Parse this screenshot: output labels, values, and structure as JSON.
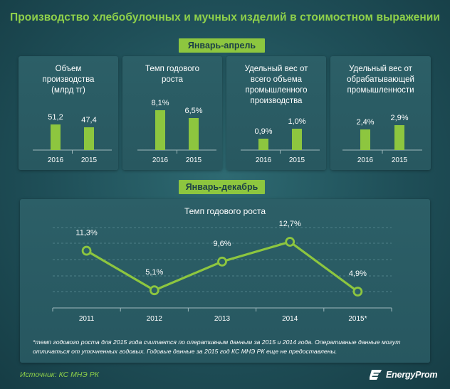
{
  "title": "Производство хлебобулочных и мучных изделий в стоимостном выражении",
  "section_top": "Январь-апрель",
  "section_bottom": "Январь-декабрь",
  "colors": {
    "accent": "#8dc63f",
    "background": "#1f4f58",
    "panel": "#2c5f67"
  },
  "chart_data": [
    {
      "type": "bar",
      "title": "Объем\nпроизводства\n(млрд тг)",
      "categories": [
        "2016",
        "2015"
      ],
      "values": [
        51.2,
        47.4
      ],
      "labels": [
        "51,2",
        "47,4"
      ]
    },
    {
      "type": "bar",
      "title": "Темп годового\nроста",
      "categories": [
        "2016",
        "2015"
      ],
      "values": [
        8.1,
        6.5
      ],
      "labels": [
        "8,1%",
        "6,5%"
      ]
    },
    {
      "type": "bar",
      "title": "Удельный вес от\nвсего объема\nпромышленного\nпроизводства",
      "categories": [
        "2016",
        "2015"
      ],
      "values": [
        0.9,
        1.0
      ],
      "labels": [
        "0,9%",
        "1,0%"
      ]
    },
    {
      "type": "bar",
      "title": "Удельный вес от\nобрабатывающей\nпромышленности",
      "categories": [
        "2016",
        "2015"
      ],
      "values": [
        2.4,
        2.9
      ],
      "labels": [
        "2,4%",
        "2,9%"
      ]
    },
    {
      "type": "line",
      "title": "Темп годового роста",
      "categories": [
        "2011",
        "2012",
        "2013",
        "2014",
        "2015*"
      ],
      "values": [
        11.3,
        5.1,
        9.6,
        12.7,
        4.9
      ],
      "labels": [
        "11,3%",
        "5,1%",
        "9,6%",
        "12,7%",
        "4,9%"
      ],
      "grid": true
    }
  ],
  "footnote": "*темп годового роста для 2015 года считается по оперативным данным за 2015 и 2014 года. Оперативные данные могут отличаться от уточненных годовых. Годовые данные за 2015 год КС МНЭ РК еще не предоставлены.",
  "source": "Источник: КС МНЭ РК",
  "logo_text": "EnergyProm",
  "logo_icon": "energyprom-logo-icon"
}
